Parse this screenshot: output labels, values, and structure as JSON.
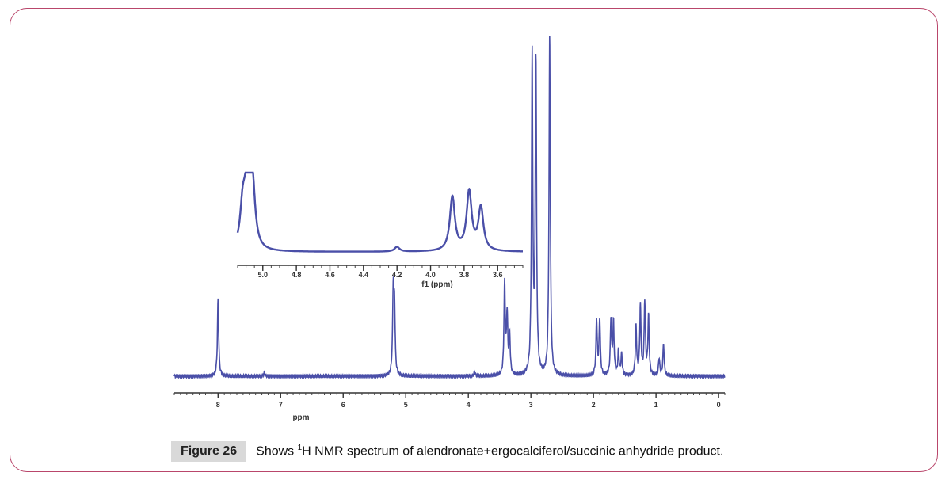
{
  "figure": {
    "label": "Figure 26",
    "caption_prefix": "Shows ",
    "caption_sup": "1",
    "caption_rest": "H NMR spectrum of alendronate+ergocalciferol/succinic anhydride product.",
    "border_color": "#b9466b",
    "label_bg": "#d9d9d9"
  },
  "chart_data": [
    {
      "type": "line",
      "title": "",
      "xlabel": "ppm",
      "ylabel": "",
      "xlim": [
        8.7,
        -0.1
      ],
      "ylim": [
        0,
        1
      ],
      "x_reversed": true,
      "x_ticks": [
        "8",
        "7",
        "6",
        "5",
        "4",
        "3",
        "2",
        "1",
        "0"
      ],
      "line_color": "#4a4fa8",
      "peaks": [
        {
          "ppm": 8.0,
          "height": 0.22
        },
        {
          "ppm": 7.26,
          "height": 0.01
        },
        {
          "ppm": 5.2,
          "height": 0.24
        },
        {
          "ppm": 5.18,
          "height": 0.18
        },
        {
          "ppm": 3.9,
          "height": 0.012
        },
        {
          "ppm": 3.42,
          "height": 0.26
        },
        {
          "ppm": 3.38,
          "height": 0.17
        },
        {
          "ppm": 3.34,
          "height": 0.11
        },
        {
          "ppm": 2.98,
          "height": 0.91
        },
        {
          "ppm": 2.92,
          "height": 0.9
        },
        {
          "ppm": 2.7,
          "height": 0.98
        },
        {
          "ppm": 1.95,
          "height": 0.16
        },
        {
          "ppm": 1.9,
          "height": 0.16
        },
        {
          "ppm": 1.72,
          "height": 0.16
        },
        {
          "ppm": 1.68,
          "height": 0.15
        },
        {
          "ppm": 1.6,
          "height": 0.07
        },
        {
          "ppm": 1.55,
          "height": 0.06
        },
        {
          "ppm": 1.32,
          "height": 0.14
        },
        {
          "ppm": 1.25,
          "height": 0.2
        },
        {
          "ppm": 1.18,
          "height": 0.21
        },
        {
          "ppm": 1.12,
          "height": 0.17
        },
        {
          "ppm": 0.95,
          "height": 0.05
        },
        {
          "ppm": 0.88,
          "height": 0.09
        }
      ]
    },
    {
      "type": "line",
      "title": "",
      "xlabel": "f1 (ppm)",
      "ylabel": "",
      "xlim": [
        5.15,
        3.45
      ],
      "ylim": [
        0,
        1
      ],
      "x_reversed": true,
      "x_ticks": [
        "5.0",
        "4.8",
        "4.6",
        "4.4",
        "4.2",
        "4.0",
        "3.8",
        "3.6"
      ],
      "line_color": "#4a4fa8",
      "peaks": [
        {
          "ppm": 5.12,
          "height": 0.48
        },
        {
          "ppm": 5.1,
          "height": 0.4
        },
        {
          "ppm": 5.08,
          "height": 0.72
        },
        {
          "ppm": 5.06,
          "height": 0.62
        },
        {
          "ppm": 4.2,
          "height": 0.06
        },
        {
          "ppm": 3.87,
          "height": 0.68
        },
        {
          "ppm": 3.77,
          "height": 0.74
        },
        {
          "ppm": 3.7,
          "height": 0.54
        }
      ]
    }
  ]
}
